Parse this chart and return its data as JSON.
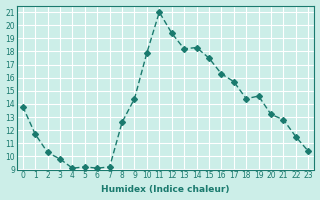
{
  "xlabel": "Humidex (Indice chaleur)",
  "ylabel": "",
  "x": [
    0,
    1,
    2,
    3,
    4,
    5,
    6,
    7,
    8,
    9,
    10,
    11,
    12,
    13,
    14,
    15,
    16,
    17,
    18,
    19,
    20,
    21,
    22,
    23
  ],
  "y": [
    13.8,
    11.7,
    10.3,
    9.8,
    9.1,
    9.2,
    9.1,
    9.2,
    12.6,
    14.4,
    17.9,
    21.0,
    19.4,
    18.2,
    18.3,
    17.5,
    16.3,
    15.7,
    14.4,
    14.6,
    13.2,
    12.8,
    11.5,
    10.4
  ],
  "line_color": "#1a7a6e",
  "marker": "D",
  "marker_size": 3,
  "bg_color": "#cceee8",
  "grid_color": "#ffffff",
  "xlim": [
    -0.5,
    23.5
  ],
  "ylim": [
    9,
    21.5
  ],
  "yticks": [
    9,
    10,
    11,
    12,
    13,
    14,
    15,
    16,
    17,
    18,
    19,
    20,
    21
  ],
  "xticks": [
    0,
    1,
    2,
    3,
    4,
    5,
    6,
    7,
    8,
    9,
    10,
    11,
    12,
    13,
    14,
    15,
    16,
    17,
    18,
    19,
    20,
    21,
    22,
    23
  ]
}
